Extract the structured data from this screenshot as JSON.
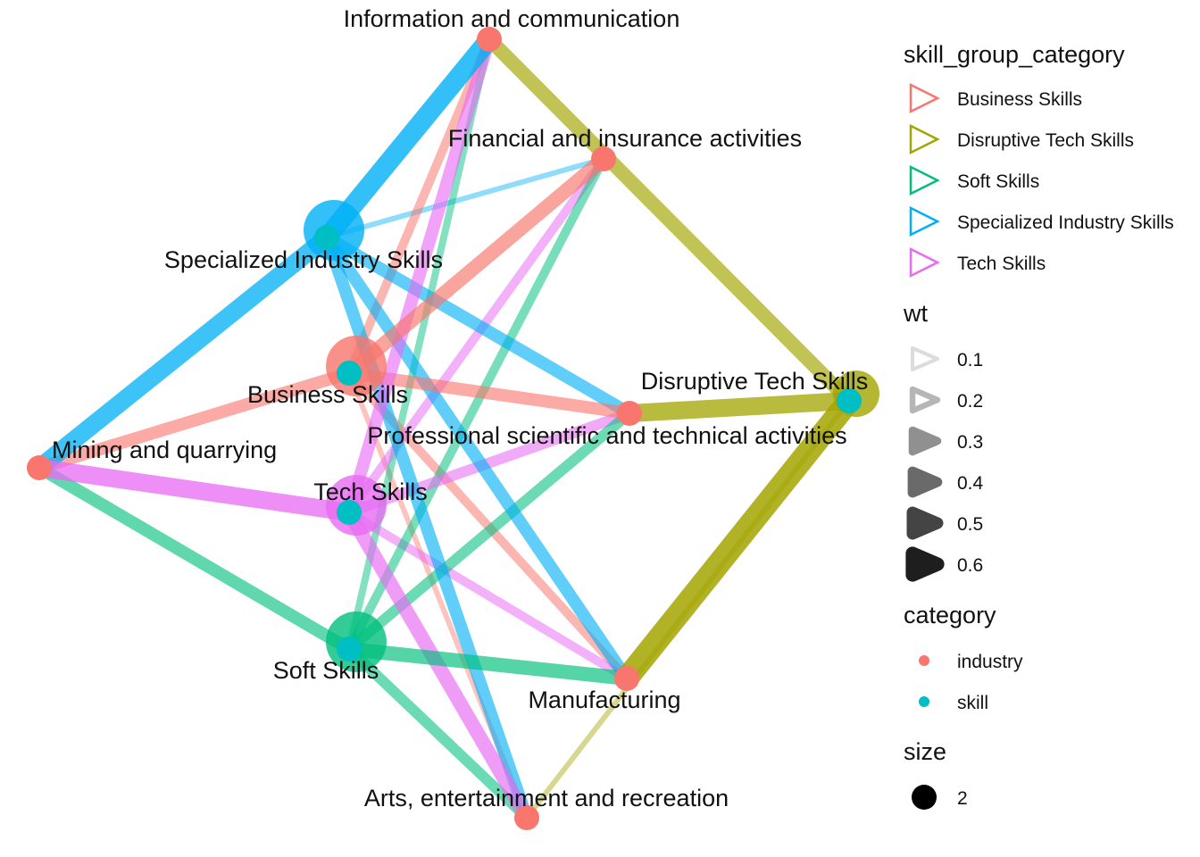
{
  "colors": {
    "Business Skills": "#F8766D",
    "Disruptive Tech Skills": "#A3A500",
    "Soft Skills": "#00BF7D",
    "Specialized Industry Skills": "#00B0F6",
    "Tech Skills": "#E76BF3",
    "industry": "#F8766D",
    "skill": "#00BFC4"
  },
  "nodes": [
    {
      "id": "info",
      "label": "Information and communication",
      "category": "industry"
    },
    {
      "id": "fin",
      "label": "Financial and insurance activities",
      "category": "industry"
    },
    {
      "id": "prof",
      "label": "Professional scientific and technical activities",
      "category": "industry"
    },
    {
      "id": "mining",
      "label": "Mining and quarrying",
      "category": "industry"
    },
    {
      "id": "manuf",
      "label": "Manufacturing",
      "category": "industry"
    },
    {
      "id": "arts",
      "label": "Arts, entertainment and recreation",
      "category": "industry"
    },
    {
      "id": "spec",
      "label": "Specialized Industry Skills",
      "category": "skill"
    },
    {
      "id": "bus",
      "label": "Business Skills",
      "category": "skill"
    },
    {
      "id": "tech",
      "label": "Tech Skills",
      "category": "skill"
    },
    {
      "id": "soft",
      "label": "Soft Skills",
      "category": "skill"
    },
    {
      "id": "disr",
      "label": "Disruptive Tech Skills",
      "category": "skill"
    }
  ],
  "edges": [
    {
      "from": "spec",
      "to": "info",
      "group": "Specialized Industry Skills",
      "wt": 0.5
    },
    {
      "from": "spec",
      "to": "fin",
      "group": "Specialized Industry Skills",
      "wt": 0.1
    },
    {
      "from": "spec",
      "to": "mining",
      "group": "Specialized Industry Skills",
      "wt": 0.45
    },
    {
      "from": "spec",
      "to": "prof",
      "group": "Specialized Industry Skills",
      "wt": 0.3
    },
    {
      "from": "spec",
      "to": "manuf",
      "group": "Specialized Industry Skills",
      "wt": 0.3
    },
    {
      "from": "spec",
      "to": "arts",
      "group": "Specialized Industry Skills",
      "wt": 0.3
    },
    {
      "from": "bus",
      "to": "info",
      "group": "Business Skills",
      "wt": 0.2
    },
    {
      "from": "bus",
      "to": "fin",
      "group": "Business Skills",
      "wt": 0.35
    },
    {
      "from": "bus",
      "to": "mining",
      "group": "Business Skills",
      "wt": 0.3
    },
    {
      "from": "bus",
      "to": "prof",
      "group": "Business Skills",
      "wt": 0.3
    },
    {
      "from": "bus",
      "to": "manuf",
      "group": "Business Skills",
      "wt": 0.2
    },
    {
      "from": "bus",
      "to": "arts",
      "group": "Business Skills",
      "wt": 0.1
    },
    {
      "from": "tech",
      "to": "info",
      "group": "Tech Skills",
      "wt": 0.3
    },
    {
      "from": "tech",
      "to": "fin",
      "group": "Tech Skills",
      "wt": 0.2
    },
    {
      "from": "tech",
      "to": "mining",
      "group": "Tech Skills",
      "wt": 0.45
    },
    {
      "from": "tech",
      "to": "prof",
      "group": "Tech Skills",
      "wt": 0.25
    },
    {
      "from": "tech",
      "to": "manuf",
      "group": "Tech Skills",
      "wt": 0.2
    },
    {
      "from": "tech",
      "to": "arts",
      "group": "Tech Skills",
      "wt": 0.35
    },
    {
      "from": "soft",
      "to": "info",
      "group": "Soft Skills",
      "wt": 0.15
    },
    {
      "from": "soft",
      "to": "fin",
      "group": "Soft Skills",
      "wt": 0.2
    },
    {
      "from": "soft",
      "to": "mining",
      "group": "Soft Skills",
      "wt": 0.3
    },
    {
      "from": "soft",
      "to": "prof",
      "group": "Soft Skills",
      "wt": 0.25
    },
    {
      "from": "soft",
      "to": "manuf",
      "group": "Soft Skills",
      "wt": 0.35
    },
    {
      "from": "soft",
      "to": "arts",
      "group": "Soft Skills",
      "wt": 0.25
    },
    {
      "from": "disr",
      "to": "info",
      "group": "Disruptive Tech Skills",
      "wt": 0.35
    },
    {
      "from": "disr",
      "to": "prof",
      "group": "Disruptive Tech Skills",
      "wt": 0.45
    },
    {
      "from": "disr",
      "to": "manuf",
      "group": "Disruptive Tech Skills",
      "wt": 0.6
    },
    {
      "from": "disr",
      "to": "arts",
      "group": "Disruptive Tech Skills",
      "wt": 0.1
    }
  ],
  "legend": {
    "edge_group": {
      "title": "skill_group_category",
      "items": [
        "Business Skills",
        "Disruptive Tech Skills",
        "Soft Skills",
        "Specialized Industry Skills",
        "Tech Skills"
      ]
    },
    "wt": {
      "title": "wt",
      "items": [
        "0.1",
        "0.2",
        "0.3",
        "0.4",
        "0.5",
        "0.6"
      ]
    },
    "category": {
      "title": "category",
      "items": [
        "industry",
        "skill"
      ]
    },
    "size": {
      "title": "size",
      "items": [
        "2"
      ]
    }
  }
}
